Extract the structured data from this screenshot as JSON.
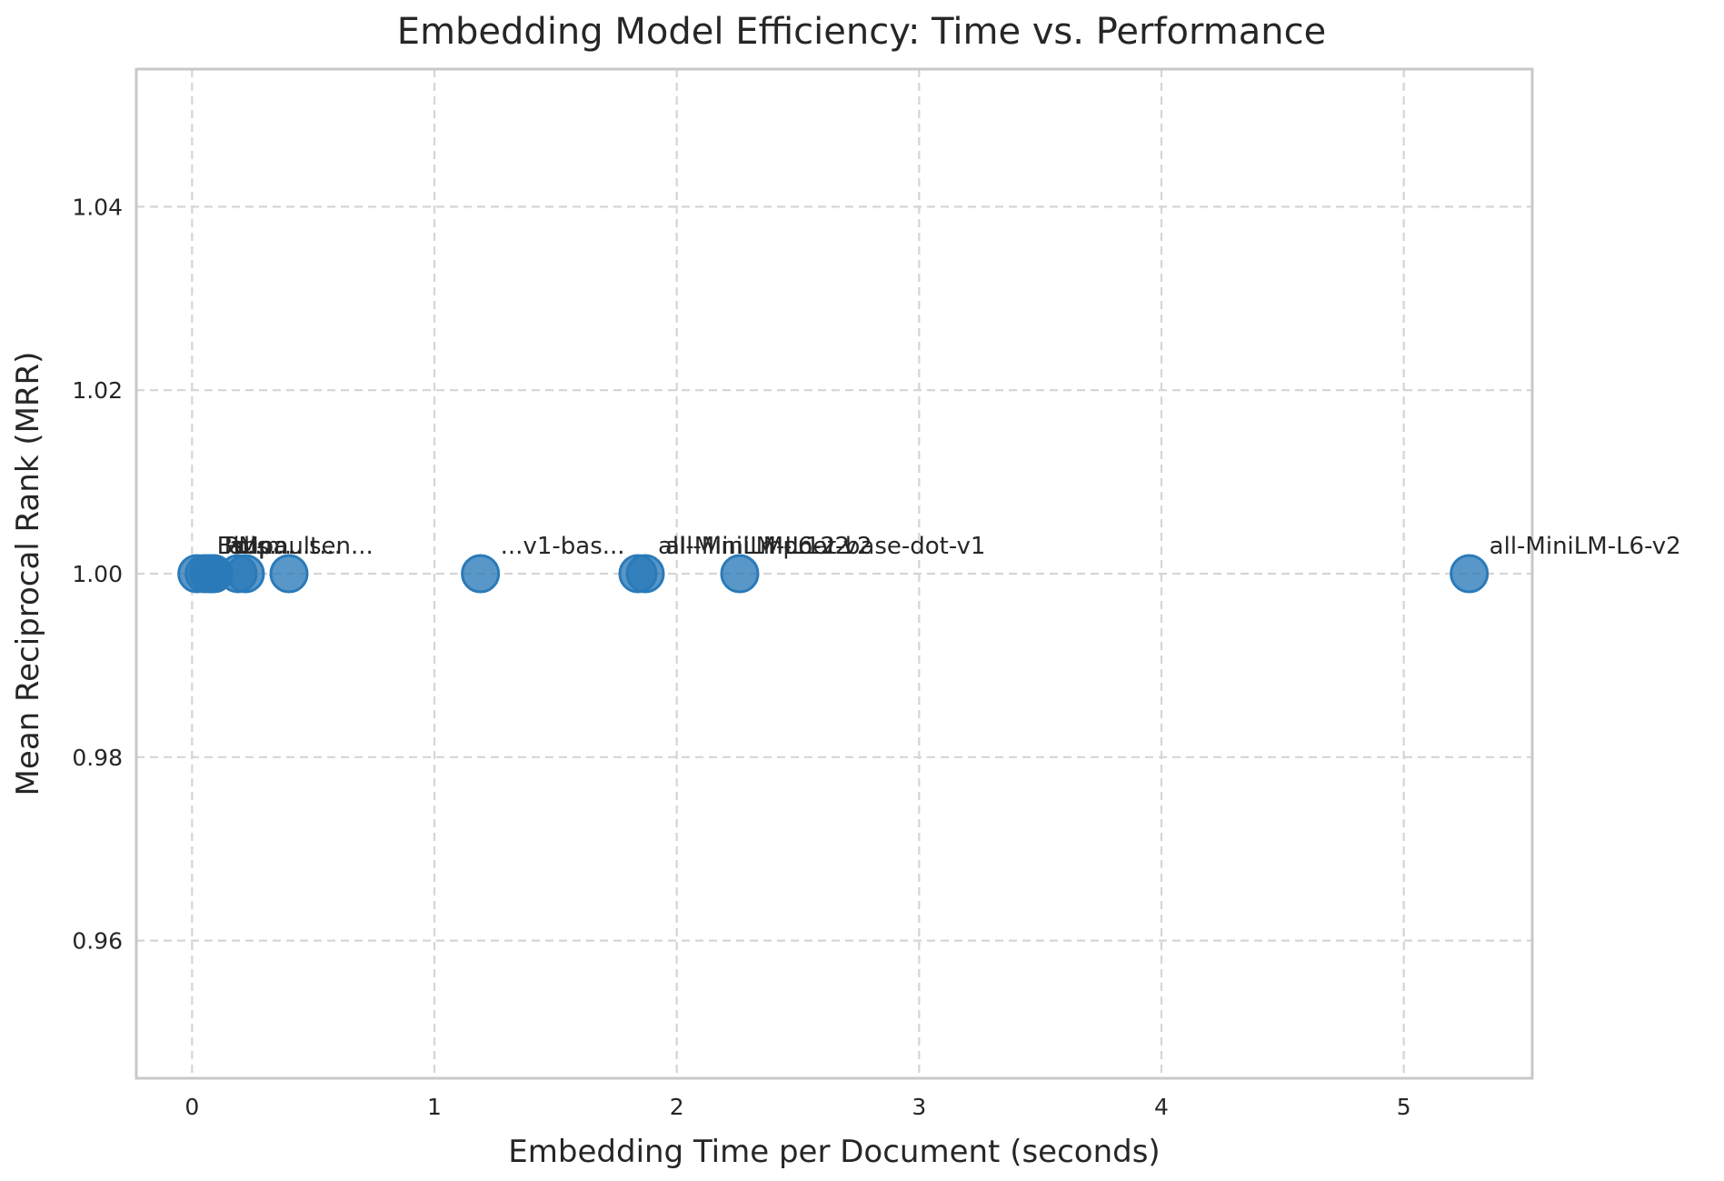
{
  "chart_data": {
    "type": "scatter",
    "title": "Embedding Model Efficiency: Time vs. Performance",
    "xlabel": "Embedding Time per Document (seconds)",
    "ylabel": "Mean Reciprocal Rank (MRR)",
    "xlim": [
      -0.23,
      5.53
    ],
    "ylim": [
      0.945,
      1.055
    ],
    "x_ticks": [
      0,
      1,
      2,
      3,
      4,
      5
    ],
    "x_tick_labels": [
      "0",
      "1",
      "2",
      "3",
      "4",
      "5"
    ],
    "y_ticks": [
      0.96,
      0.98,
      1.0,
      1.02,
      1.04
    ],
    "y_tick_labels": [
      "0.96",
      "0.98",
      "1.00",
      "1.02",
      "1.04"
    ],
    "grid": true,
    "marker_color": "#2a7ab9",
    "points": [
      {
        "x": 0.02,
        "y": 1.0,
        "label": "Bi..."
      },
      {
        "x": 0.05,
        "y": 1.0,
        "label": "PM..."
      },
      {
        "x": 0.07,
        "y": 1.0,
        "label": "all-..."
      },
      {
        "x": 0.08,
        "y": 1.0,
        "label": "sup..."
      },
      {
        "x": 0.09,
        "y": 1.0,
        "label": "ms..."
      },
      {
        "x": 0.19,
        "y": 1.0,
        "label": "pa..."
      },
      {
        "x": 0.22,
        "y": 1.0,
        "label": "mult..."
      },
      {
        "x": 0.4,
        "y": 1.0,
        "label": "sen..."
      },
      {
        "x": 1.19,
        "y": 1.0,
        "label": "...v1-bas..."
      },
      {
        "x": 1.84,
        "y": 1.0,
        "label": "all-MiniLM-L6-v2"
      },
      {
        "x": 1.87,
        "y": 1.0,
        "label": "all-MiniLM-L12-v2"
      },
      {
        "x": 2.26,
        "y": 1.0,
        "label": "mpnet-base-dot-v1"
      },
      {
        "x": 5.27,
        "y": 1.0,
        "label": "all-MiniLM-L6-v2"
      }
    ]
  }
}
